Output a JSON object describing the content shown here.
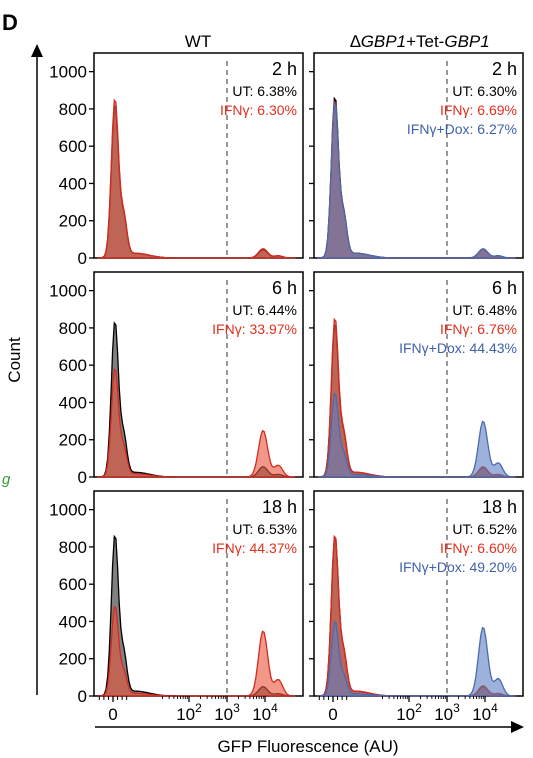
{
  "panel_letter": "D",
  "colors": {
    "ut_fill": "#555555",
    "ut_line": "#000000",
    "ifn_fill": "#e8533a",
    "ifn_line": "#d42a20",
    "ifn_text": "#e0301e",
    "dox_fill": "#5b7fc2",
    "dox_line": "#4a6bb0",
    "dox_text": "#3f62ad",
    "stray_label": "#2e9e3a"
  },
  "stray_label_text": "g",
  "column_titles": [
    {
      "parts": [
        {
          "t": "WT",
          "i": false
        }
      ]
    },
    {
      "parts": [
        {
          "t": "∆",
          "i": false
        },
        {
          "t": "GBP1",
          "i": true
        },
        {
          "t": "+Tet-",
          "i": false
        },
        {
          "t": "GBP1",
          "i": true
        }
      ]
    }
  ],
  "row_times": [
    "2 h",
    "6 h",
    "18 h"
  ],
  "ylabel": "Count",
  "xlabel": "GFP Fluorescence (AU)",
  "y_ticks": [
    "0",
    "200",
    "400",
    "600",
    "800",
    "1000"
  ],
  "x_ticks": [
    {
      "base": "0",
      "exp": "",
      "x": 0
    },
    {
      "base": "10",
      "exp": "2",
      "x": 2
    },
    {
      "base": "10",
      "exp": "3",
      "x": 3
    },
    {
      "base": "10",
      "exp": "4",
      "x": 4
    }
  ],
  "chart_data": {
    "type": "area",
    "xscale": "biexponential (GFP fluorescence)",
    "ylim": [
      0,
      1100
    ],
    "gate_x": 3,
    "panels": [
      {
        "row": 0,
        "col": 0,
        "time": "2 h",
        "labels": [
          {
            "key": "ut",
            "text": "UT: 6.38%"
          },
          {
            "key": "ifn",
            "text": "IFNγ: 6.30%"
          }
        ],
        "series": [
          {
            "key": "ut",
            "neg_peak": 820,
            "pos_peak": 45
          },
          {
            "key": "ifn",
            "neg_peak": 850,
            "pos_peak": 50
          }
        ]
      },
      {
        "row": 0,
        "col": 1,
        "time": "2 h",
        "labels": [
          {
            "key": "ut",
            "text": "UT: 6.30%"
          },
          {
            "key": "ifn",
            "text": "IFNγ: 6.69%"
          },
          {
            "key": "dox",
            "text": "IFNγ+Dox: 6.27%"
          }
        ],
        "series": [
          {
            "key": "ut",
            "neg_peak": 860,
            "pos_peak": 45
          },
          {
            "key": "ifn",
            "neg_peak": 840,
            "pos_peak": 45
          },
          {
            "key": "dox",
            "neg_peak": 830,
            "pos_peak": 50
          }
        ]
      },
      {
        "row": 1,
        "col": 0,
        "time": "6 h",
        "labels": [
          {
            "key": "ut",
            "text": "UT: 6.44%"
          },
          {
            "key": "ifn",
            "text": "IFNγ: 33.97%"
          }
        ],
        "series": [
          {
            "key": "ut",
            "neg_peak": 830,
            "pos_peak": 55
          },
          {
            "key": "ifn",
            "neg_peak": 580,
            "pos_peak": 250
          }
        ]
      },
      {
        "row": 1,
        "col": 1,
        "time": "6 h",
        "labels": [
          {
            "key": "ut",
            "text": "UT: 6.48%"
          },
          {
            "key": "ifn",
            "text": "IFNγ: 6.76%"
          },
          {
            "key": "dox",
            "text": "IFNγ+Dox: 44.43%"
          }
        ],
        "series": [
          {
            "key": "ut",
            "neg_peak": 820,
            "pos_peak": 50
          },
          {
            "key": "ifn",
            "neg_peak": 850,
            "pos_peak": 55
          },
          {
            "key": "dox",
            "neg_peak": 450,
            "pos_peak": 300
          }
        ]
      },
      {
        "row": 2,
        "col": 0,
        "time": "18 h",
        "labels": [
          {
            "key": "ut",
            "text": "UT: 6.53%"
          },
          {
            "key": "ifn",
            "text": "IFNγ: 44.37%"
          }
        ],
        "series": [
          {
            "key": "ut",
            "neg_peak": 860,
            "pos_peak": 50
          },
          {
            "key": "ifn",
            "neg_peak": 480,
            "pos_peak": 350
          }
        ]
      },
      {
        "row": 2,
        "col": 1,
        "time": "18 h",
        "labels": [
          {
            "key": "ut",
            "text": "UT: 6.52%"
          },
          {
            "key": "ifn",
            "text": "IFNγ: 6.60%"
          },
          {
            "key": "dox",
            "text": "IFNγ+Dox: 49.20%"
          }
        ],
        "series": [
          {
            "key": "ut",
            "neg_peak": 850,
            "pos_peak": 50
          },
          {
            "key": "ifn",
            "neg_peak": 860,
            "pos_peak": 55
          },
          {
            "key": "dox",
            "neg_peak": 400,
            "pos_peak": 370
          }
        ]
      }
    ]
  }
}
